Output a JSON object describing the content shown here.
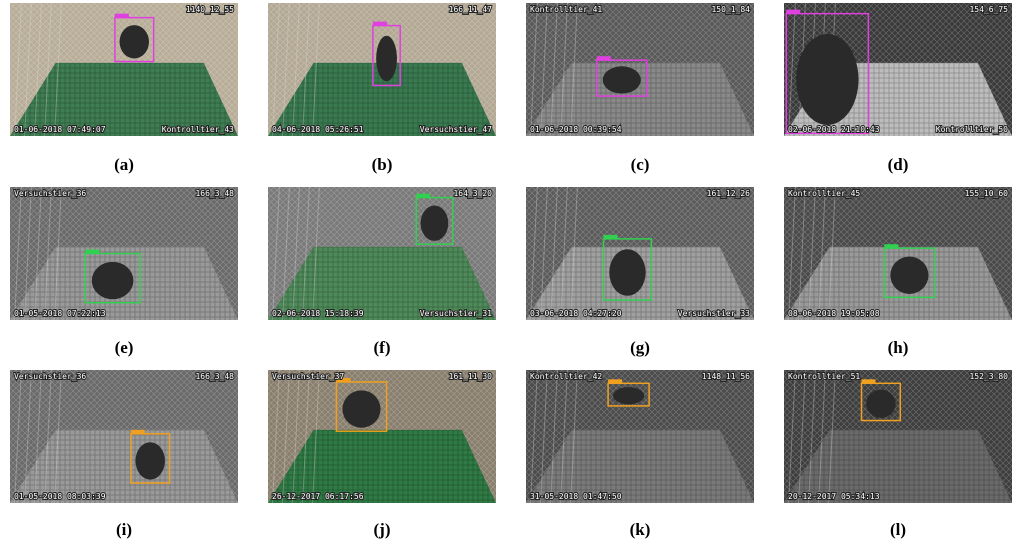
{
  "panels": [
    {
      "caption": "(a)",
      "top_right": "1140_12_55",
      "bottom_left": "01-06-2018 07:49:07",
      "bottom_right": "Kontrolltier_43",
      "box_color": "#e040e0"
    },
    {
      "caption": "(b)",
      "top_right": "166_11_47",
      "bottom_left": "04-06-2018 05:26:51",
      "bottom_right": "Versuchstier_47",
      "box_color": "#e040e0"
    },
    {
      "caption": "(c)",
      "top_left": "Kontrolltier_41",
      "top_right": "150_1_84",
      "bottom_left": "01-06-2018 00:39:54",
      "box_color": "#e040e0"
    },
    {
      "caption": "(d)",
      "top_right": "154_6_75",
      "bottom_left": "02-06-2018 21:10:43",
      "bottom_right": "Kontrolltier_50",
      "box_color": "#e040e0"
    },
    {
      "caption": "(e)",
      "top_left": "Versuchstier_36",
      "top_right": "166_3_48",
      "bottom_left": "01-05-2018 07:22:13",
      "box_color": "#30d050"
    },
    {
      "caption": "(f)",
      "top_right": "164_3_20",
      "bottom_left": "02-06-2018 15:18:39",
      "bottom_right": "Versuchstier_31",
      "box_color": "#30d050"
    },
    {
      "caption": "(g)",
      "top_right": "161_12_26",
      "bottom_left": "03-06-2018 04:27:20",
      "bottom_right": "Versuchstier_33",
      "box_color": "#30d050"
    },
    {
      "caption": "(h)",
      "top_left": "Kontrolltier_45",
      "top_right": "155_10_60",
      "bottom_left": "08-06-2018 19:05:08",
      "box_color": "#30d050"
    },
    {
      "caption": "(i)",
      "top_left": "Versuchstier_36",
      "top_right": "166_3_48",
      "bottom_left": "01-05-2018 08:03:39",
      "box_color": "#f0a020"
    },
    {
      "caption": "(j)",
      "top_left": "Versuchstier_37",
      "top_right": "161_11_30",
      "bottom_left": "26-12-2017 06:17:56",
      "box_color": "#f0a020"
    },
    {
      "caption": "(k)",
      "top_left": "Kontrolltier_42",
      "top_right": "1148_11_56",
      "bottom_left": "31-05-2018 01:47:50",
      "box_color": "#f0a020"
    },
    {
      "caption": "(l)",
      "top_left": "Kontrolltier_51",
      "top_right": "152_3_80",
      "bottom_left": "20-12-2017 05:34:13",
      "box_color": "#f0a020"
    }
  ]
}
